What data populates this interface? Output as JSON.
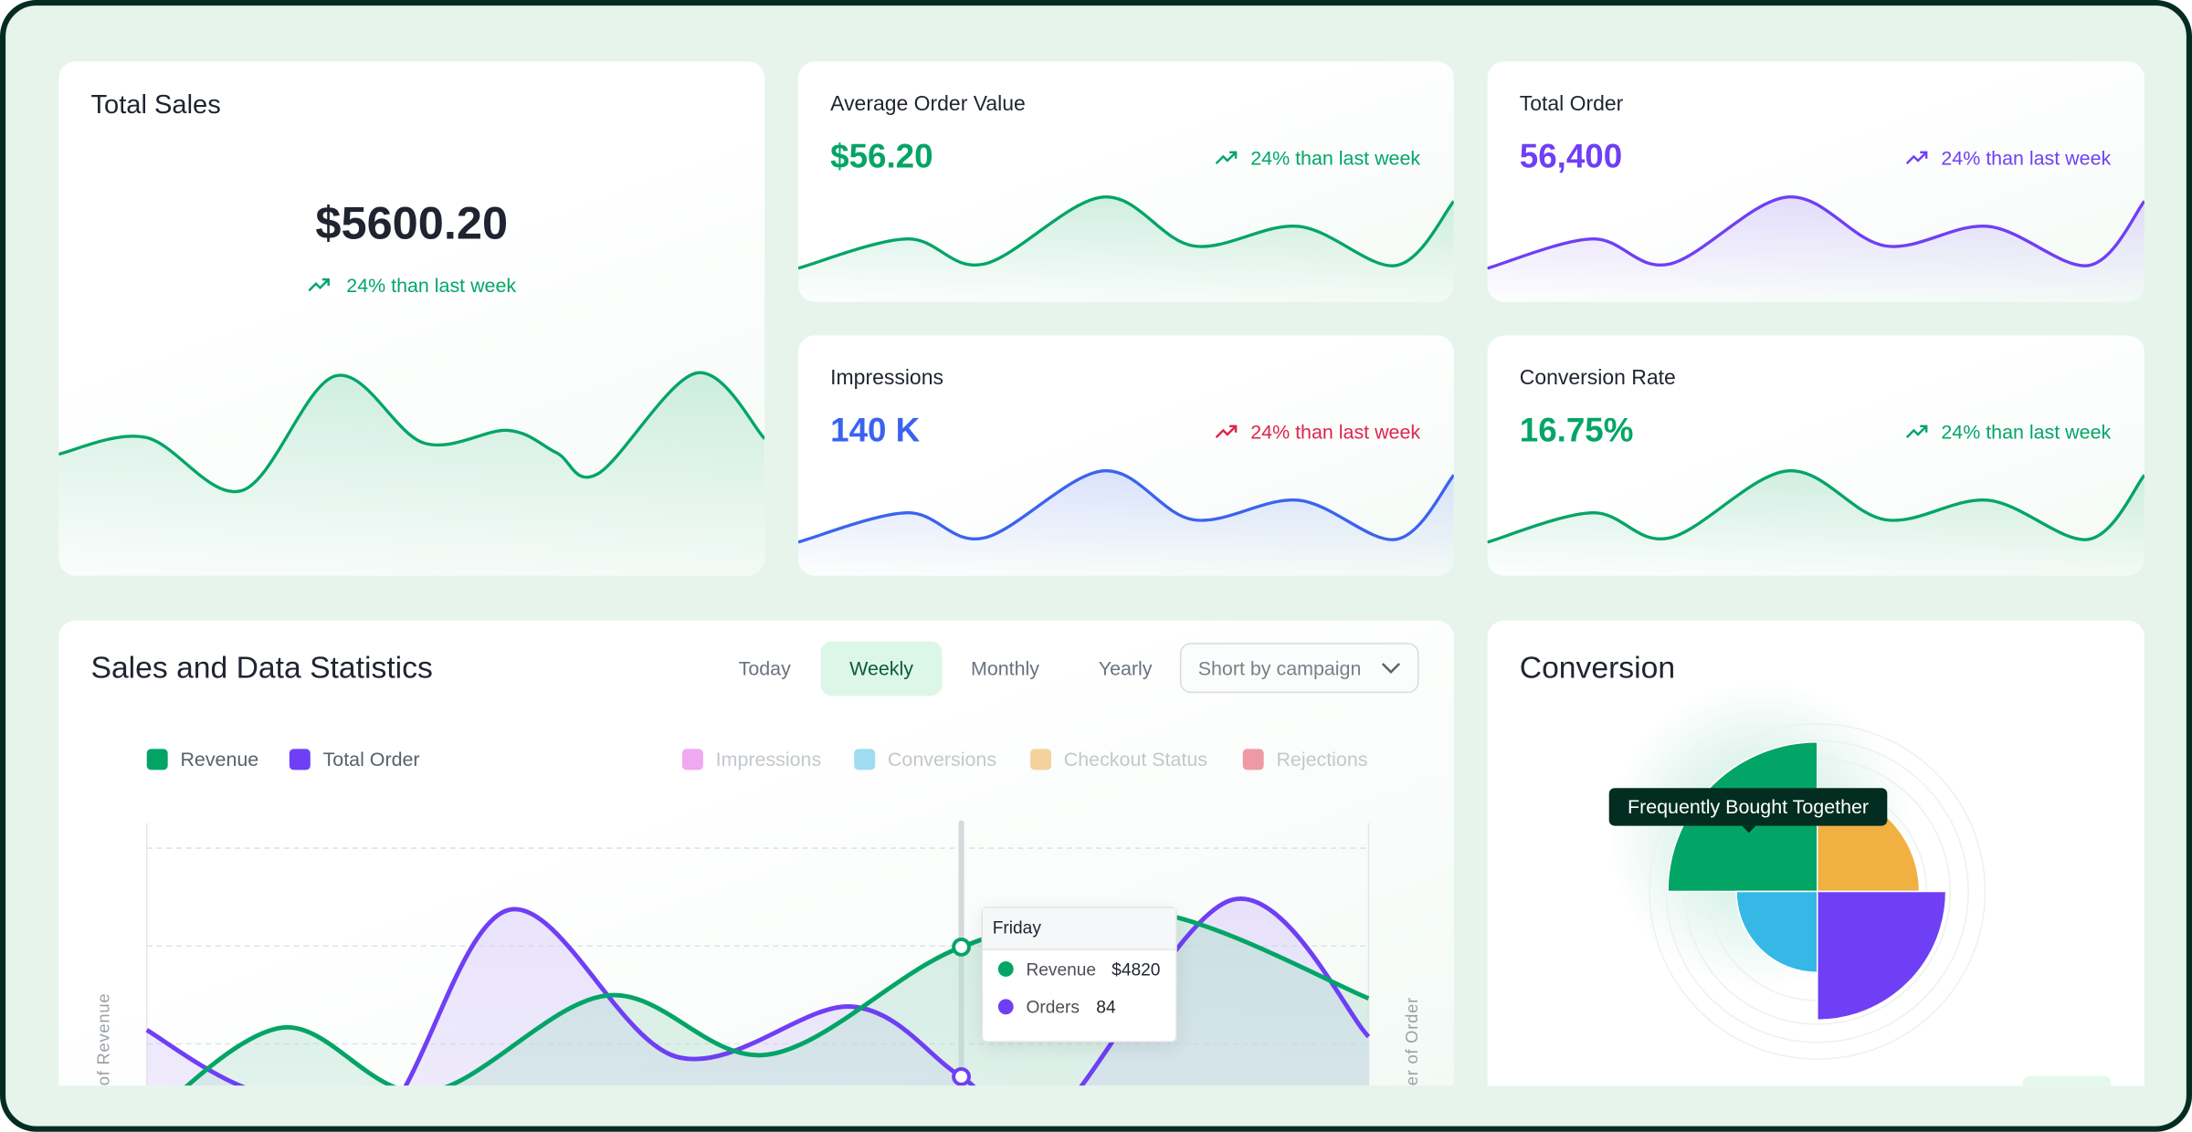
{
  "colors": {
    "green": "#03a567",
    "purple": "#6f3ff5",
    "blue": "#3b63f0",
    "red": "#e0234e",
    "orange": "#f0b042",
    "cyan": "#36b8e6",
    "frame": "#022d20",
    "background": "#e6f4ec"
  },
  "total_sales": {
    "title": "Total Sales",
    "value": "$5600.20",
    "trend": "24% than last week",
    "trend_icon": "trending-up-icon",
    "sparkline": [
      [
        0,
        87
      ],
      [
        12.3,
        99
      ],
      [
        26,
        61
      ],
      [
        39.2,
        143
      ],
      [
        51.7,
        95
      ],
      [
        63.6,
        104
      ],
      [
        70.5,
        88
      ],
      [
        76.4,
        73
      ],
      [
        90.3,
        145
      ],
      [
        100,
        98
      ]
    ]
  },
  "kpis": [
    {
      "title": "Average Order Value",
      "value": "$56.20",
      "trend": "24% than last week",
      "trend_icon": "trending-up-icon",
      "color": "#03a567",
      "trend_color": "#03a567",
      "sparkline": [
        [
          0,
          24
        ],
        [
          16.6,
          45
        ],
        [
          28.3,
          27
        ],
        [
          46.5,
          75
        ],
        [
          60.3,
          40
        ],
        [
          76.3,
          54
        ],
        [
          91.2,
          26
        ],
        [
          100,
          72
        ]
      ]
    },
    {
      "title": "Total Order",
      "value": "56,400",
      "trend": "24% than last week",
      "trend_icon": "trending-up-icon",
      "color": "#6f3ff5",
      "trend_color": "#6f3ff5",
      "sparkline": [
        [
          0,
          24
        ],
        [
          16.0,
          45
        ],
        [
          27.7,
          27
        ],
        [
          45.7,
          75
        ],
        [
          60.6,
          40
        ],
        [
          76.2,
          54
        ],
        [
          91.5,
          26
        ],
        [
          100,
          72
        ]
      ]
    },
    {
      "title": "Impressions",
      "value": "140 K",
      "trend": "24% than last week",
      "trend_icon": "trending-up-icon",
      "color": "#3b63f0",
      "trend_color": "#e0234e",
      "sparkline": [
        [
          0,
          24
        ],
        [
          16.6,
          45
        ],
        [
          28.3,
          27
        ],
        [
          46.5,
          75
        ],
        [
          60.3,
          40
        ],
        [
          76.3,
          54
        ],
        [
          91.2,
          26
        ],
        [
          100,
          72
        ]
      ]
    },
    {
      "title": "Conversion Rate",
      "value": "16.75%",
      "trend": "24% than last week",
      "trend_icon": "trending-up-icon",
      "color": "#03a567",
      "trend_color": "#03a567",
      "sparkline": [
        [
          0,
          24
        ],
        [
          16.0,
          45
        ],
        [
          27.7,
          27
        ],
        [
          45.7,
          75
        ],
        [
          60.6,
          40
        ],
        [
          76.2,
          54
        ],
        [
          91.5,
          26
        ],
        [
          100,
          72
        ]
      ]
    }
  ],
  "sales_stats": {
    "title": "Sales and Data Statistics",
    "tabs": [
      {
        "label": "Today",
        "active": false
      },
      {
        "label": "Weekly",
        "active": true
      },
      {
        "label": "Monthly",
        "active": false
      },
      {
        "label": "Yearly",
        "active": false
      }
    ],
    "dropdown": {
      "value": "Short by campaign"
    },
    "legend": [
      {
        "label": "Revenue",
        "color": "#03a567",
        "active": true
      },
      {
        "label": "Total Order",
        "color": "#6f3ff5",
        "active": true
      },
      {
        "label": "Impressions",
        "color": "#f0a8f0",
        "active": false
      },
      {
        "label": "Conversions",
        "color": "#a0dcf0",
        "active": false
      },
      {
        "label": "Checkout Status",
        "color": "#f5d29c",
        "active": false
      },
      {
        "label": "Rejections",
        "color": "#ee9aa4",
        "active": false
      }
    ],
    "left_axis_label": "of Revenue",
    "right_axis_label": "er of Order",
    "tooltip": {
      "title": "Friday",
      "rows": [
        {
          "label": "Revenue",
          "value": "$4820",
          "color": "#03a567"
        },
        {
          "label": "Orders",
          "value": "84",
          "color": "#6f3ff5"
        }
      ]
    }
  },
  "chart_data": {
    "type": "line",
    "x_unit": "day of week (0 = first day)",
    "xlim": [
      0,
      6
    ],
    "grid": true,
    "hover_x": 4,
    "series": [
      {
        "name": "Revenue",
        "axis": "left",
        "ylim": [
          3000,
          6100
        ],
        "points": [
          [
            0,
            3030
          ],
          [
            0.67,
            3990
          ],
          [
            1.37,
            3320
          ],
          [
            2.26,
            4320
          ],
          [
            3.05,
            3710
          ],
          [
            4,
            4820
          ],
          [
            4.93,
            5180
          ],
          [
            6,
            4290
          ]
        ]
      },
      {
        "name": "Total Order",
        "axis": "right",
        "ylim": [
          70,
          160
        ],
        "points": [
          [
            0,
            98
          ],
          [
            0.47,
            81
          ],
          [
            1.13,
            70
          ],
          [
            1.78,
            134
          ],
          [
            2.6,
            90
          ],
          [
            3.46,
            105
          ],
          [
            4,
            84
          ],
          [
            4.42,
            70
          ],
          [
            5.33,
            137
          ],
          [
            6,
            96
          ]
        ]
      }
    ]
  },
  "conversion": {
    "title": "Conversion",
    "tooltip": "Frequently Bought Together",
    "segments": [
      {
        "quadrant": "top-left",
        "value": 107,
        "color": "#03a567"
      },
      {
        "quadrant": "top-right",
        "value": 73,
        "color": "#f0b042"
      },
      {
        "quadrant": "bottom-left",
        "value": 58,
        "color": "#36b8e6"
      },
      {
        "quadrant": "bottom-right",
        "value": 92,
        "color": "#6f3ff5"
      }
    ],
    "max": 120
  }
}
